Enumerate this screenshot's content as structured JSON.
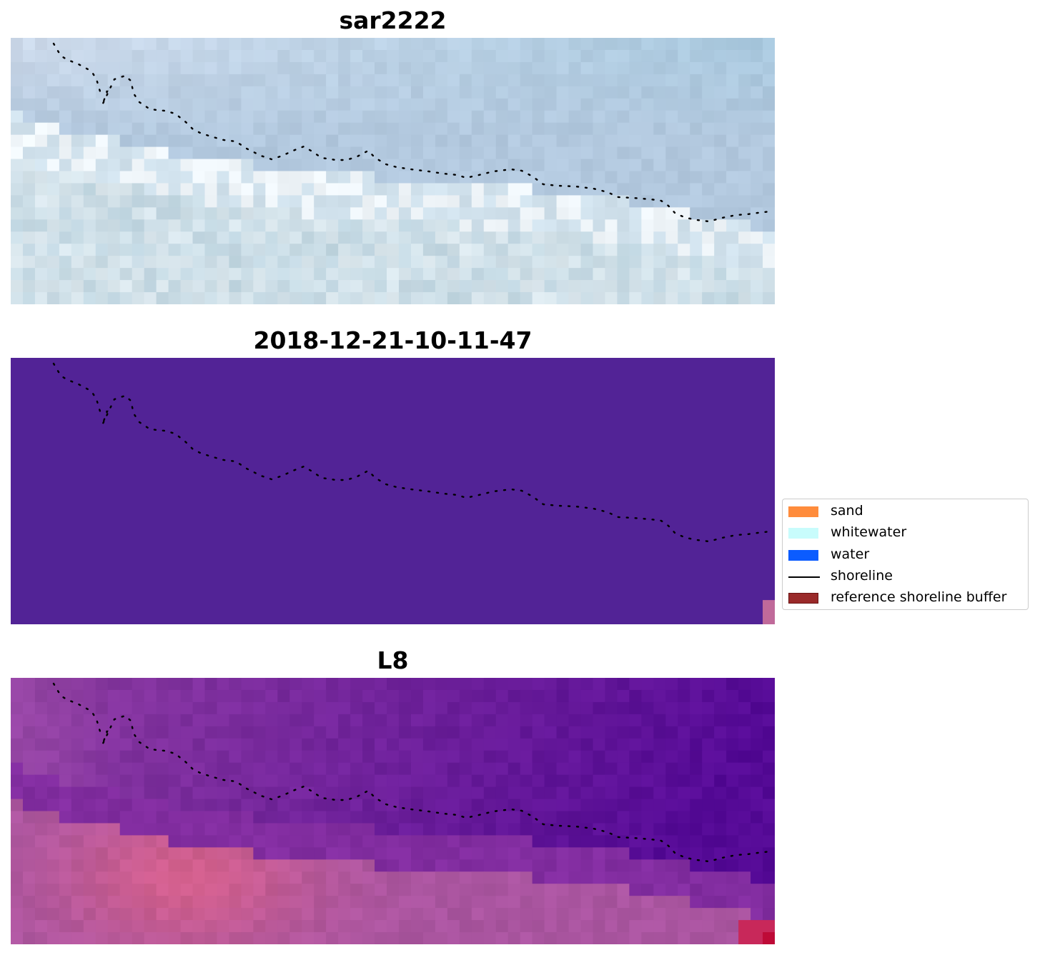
{
  "panels": [
    {
      "title": "sar2222",
      "style": "rgb"
    },
    {
      "title": "2018-12-21-10-11-47",
      "style": "class"
    },
    {
      "title": "L8",
      "style": "index"
    }
  ],
  "legend": {
    "items": [
      {
        "label": "sand",
        "color": "#ff8c3c",
        "kind": "patch"
      },
      {
        "label": "whitewater",
        "color": "#c8fcfc",
        "kind": "patch"
      },
      {
        "label": "water",
        "color": "#0b5cff",
        "kind": "patch"
      },
      {
        "label": "shoreline",
        "color": "#000000",
        "kind": "line"
      },
      {
        "label": "reference shoreline buffer",
        "color": "#9a2a2a",
        "kind": "patch"
      }
    ]
  },
  "colors": {
    "class_background": "#522396",
    "class_corner": "#c06a9a",
    "shoreline": "#000000"
  }
}
